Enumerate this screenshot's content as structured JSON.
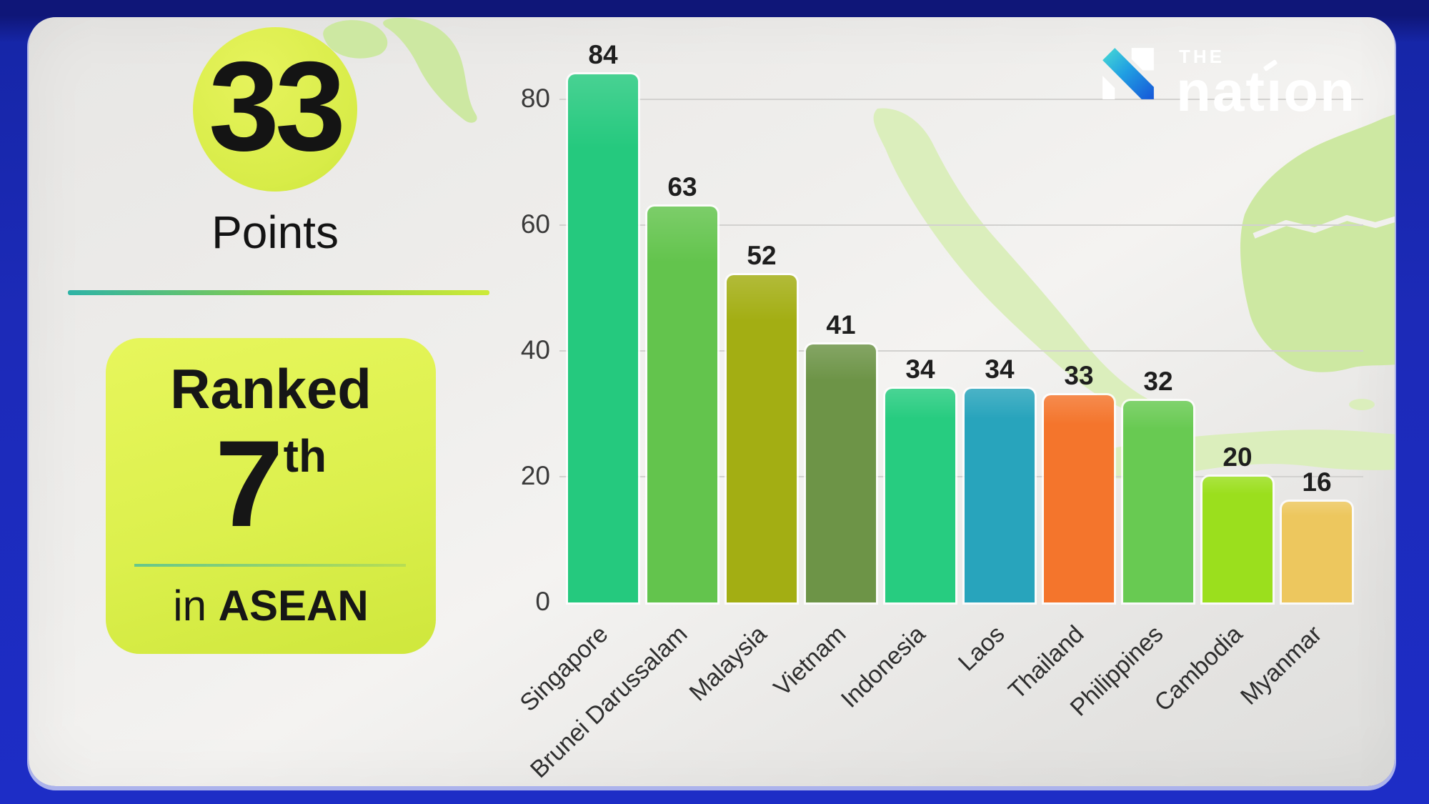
{
  "brand": {
    "the": "THE",
    "name": "nation",
    "icon_cyan": "#49dcd4",
    "icon_mid": "#21a0e2",
    "icon_blue": "#1656d8",
    "text_color": "#ffffff"
  },
  "panel": {
    "score": "33",
    "score_label": "Points",
    "circle_color": "#d8ec48",
    "divider_colors": [
      "#2eb3a6",
      "#8ecf43",
      "#cdea39"
    ],
    "badge": {
      "line1": "Ranked",
      "rank": "7",
      "rank_suffix": "th",
      "scope_prefix": "in",
      "scope": "ASEAN",
      "bg_color": "#dcf04d",
      "text_color": "#161616"
    }
  },
  "chart_data": {
    "type": "bar",
    "title": "",
    "xlabel": "",
    "ylabel": "",
    "categories": [
      "Singapore",
      "Brunei Darussalam",
      "Malaysia",
      "Vietnam",
      "Indonesia",
      "Laos",
      "Thailand",
      "Philippines",
      "Cambodia",
      "Myanmar"
    ],
    "values": [
      84,
      63,
      52,
      41,
      34,
      34,
      33,
      32,
      20,
      16
    ],
    "bar_colors": [
      "#25c97e",
      "#63c44d",
      "#a3ae13",
      "#6d9447",
      "#27cc80",
      "#28a4bc",
      "#f4752c",
      "#68ca52",
      "#9bdf1d",
      "#edc75e"
    ],
    "y_ticks": [
      0,
      20,
      40,
      60,
      80
    ],
    "ylim": [
      0,
      88
    ],
    "grid": true,
    "legend": false,
    "value_labels_shown": true,
    "x_tick_rotation_deg": -44,
    "axis_text_color": "#3a3a3a",
    "gridline_color": "#d2d1cf"
  },
  "background": {
    "frame_color": "#1c2ab8",
    "frame_top_color": "#0f1678",
    "card_color": "#eceae8",
    "map_land_color": "#cde8a2",
    "map_land_light_color": "#dbeebc"
  }
}
